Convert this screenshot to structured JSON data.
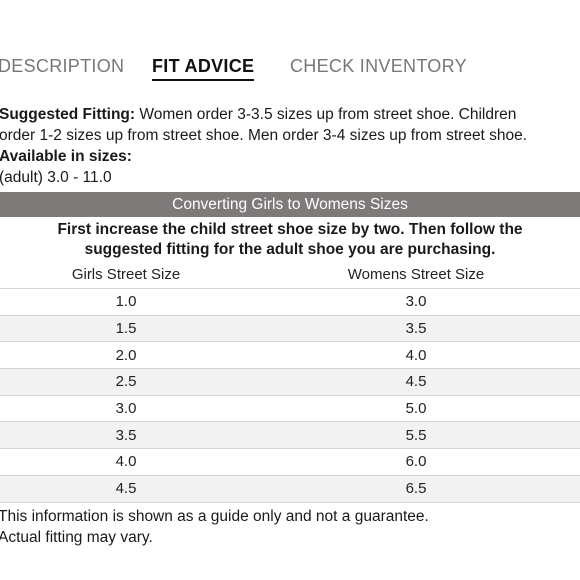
{
  "tabs": [
    {
      "label": "DESCRIPTION",
      "active": false
    },
    {
      "label": "FIT ADVICE",
      "active": true
    },
    {
      "label": "CHECK INVENTORY",
      "active": false
    }
  ],
  "fitting": {
    "suggested_label": "Suggested Fitting:",
    "suggested_line1": " Women order 3-3.5 sizes up from street shoe. Children",
    "suggested_line2": "order 1-2 sizes up from street shoe. Men order 3-4 sizes up from street shoe.",
    "available_label": "Available in sizes:",
    "available_value": "(adult) 3.0 - 11.0"
  },
  "conversion": {
    "header": "Converting Girls to Womens Sizes",
    "instruction_line1": "First increase the child street shoe size by two. Then follow the",
    "instruction_line2": "suggested fitting for the adult shoe you are purchasing.",
    "columns": [
      "Girls Street Size",
      "Womens Street Size"
    ],
    "rows": [
      [
        "1.0",
        "3.0"
      ],
      [
        "1.5",
        "3.5"
      ],
      [
        "2.0",
        "4.0"
      ],
      [
        "2.5",
        "4.5"
      ],
      [
        "3.0",
        "5.0"
      ],
      [
        "3.5",
        "5.5"
      ],
      [
        "4.0",
        "6.0"
      ],
      [
        "4.5",
        "6.5"
      ]
    ]
  },
  "footer": {
    "line1": "This information is shown as a guide only and not a guarantee.",
    "line2": "Actual fitting may vary."
  }
}
